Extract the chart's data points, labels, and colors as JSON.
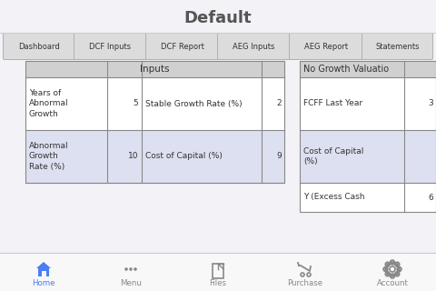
{
  "title": "Default",
  "tabs": [
    "Dashboard",
    "DCF Inputs",
    "DCF Report",
    "AEG Inputs",
    "AEG Report",
    "Statements"
  ],
  "bg_color": "#f2f2f7",
  "tab_bg": "#dcdcdc",
  "tab_border": "#b0b0b0",
  "header_bg": "#d0d0d0",
  "row1_bg": "#ffffff",
  "row2_bg": "#dde0f0",
  "inputs_header": "Inputs",
  "no_growth_header": "No Growth Valuatio",
  "left_table": {
    "col1_rows": [
      "Years of\nAbnormal\nGrowth",
      "Abnormal\nGrowth\nRate (%)"
    ],
    "col2_rows": [
      "5",
      "10"
    ],
    "col3_rows": [
      "Stable Growth Rate (%)",
      "Cost of Capital (%)"
    ],
    "col4_rows": [
      "2",
      "9"
    ]
  },
  "right_table": {
    "col1_rows": [
      "FCFF Last Year",
      "Cost of Capital\n(%)",
      "Y (Excess Cash"
    ],
    "col2_rows": [
      "3",
      "",
      "6"
    ]
  },
  "footer_items": [
    "Home",
    "Menu",
    "Files",
    "Purchase",
    "Account"
  ],
  "footer_bg": "#f8f8f8",
  "footer_border": "#cccccc",
  "home_color": "#4a7ef5",
  "icon_color": "#888888",
  "title_color": "#555555",
  "table_border": "#888888",
  "text_color": "#333333"
}
